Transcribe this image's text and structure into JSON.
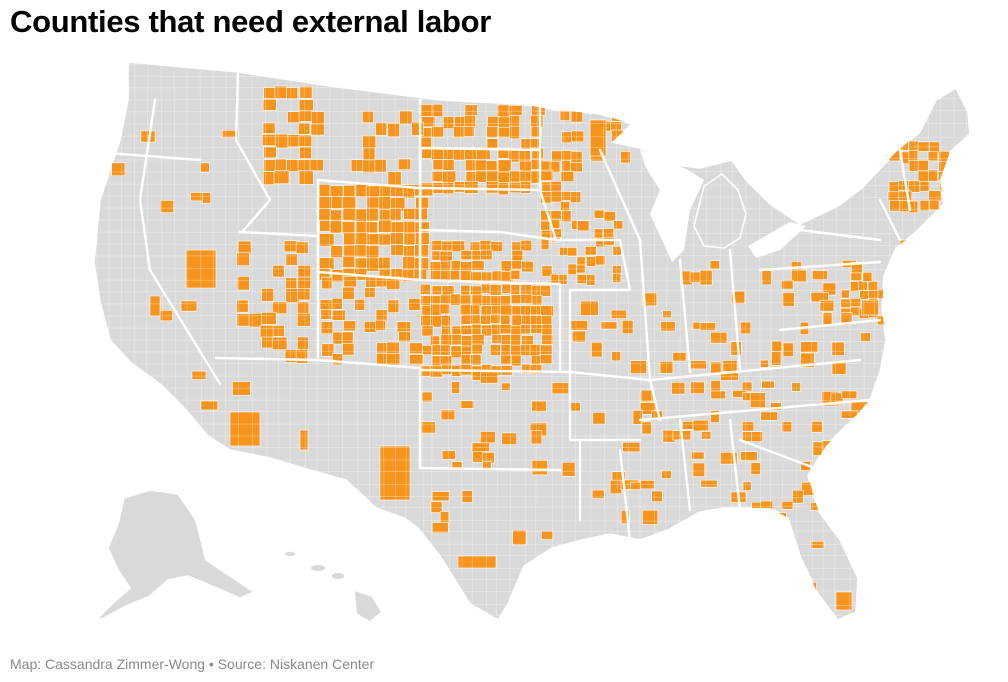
{
  "title": "Counties that need external labor",
  "footer": {
    "map_credit": "Map: Cassandra Zimmer-Wong",
    "separator": "•",
    "source": "Source: Niskanen Center"
  },
  "colors": {
    "highlight": "#f7941d",
    "base": "#d9d9d9",
    "border": "#ffffff",
    "title": "#000000",
    "footer": "#8a8a8a"
  }
}
